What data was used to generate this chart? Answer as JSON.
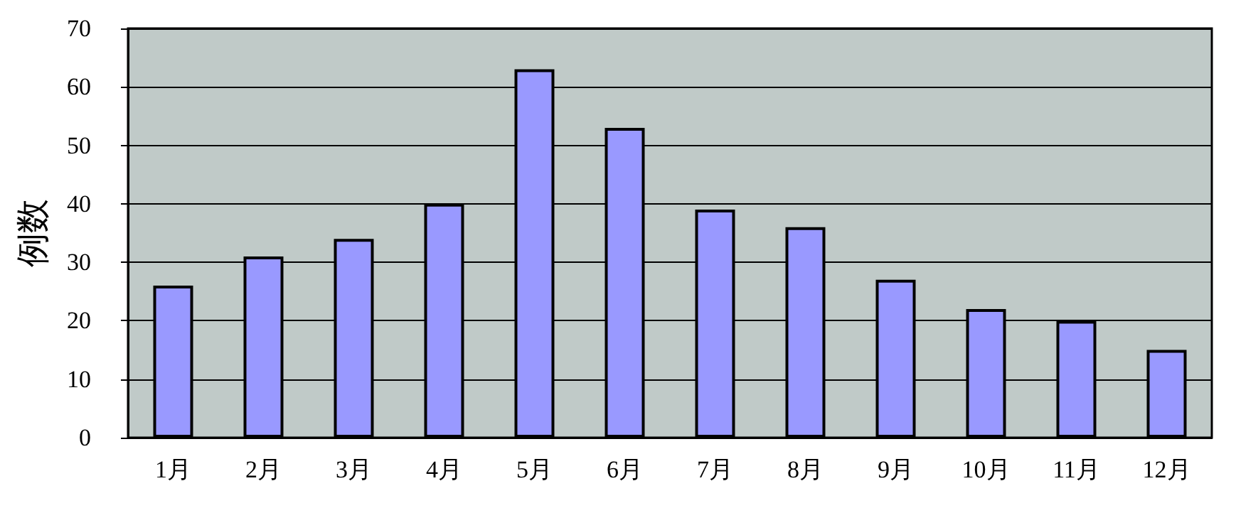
{
  "chart_data": {
    "type": "bar",
    "ylabel": "例数",
    "categories": [
      "1月",
      "2月",
      "3月",
      "4月",
      "5月",
      "6月",
      "7月",
      "8月",
      "9月",
      "10月",
      "11月",
      "12月"
    ],
    "values": [
      26,
      31,
      34,
      40,
      63,
      53,
      39,
      36,
      27,
      22,
      20,
      15
    ],
    "color": "#9999ff",
    "ylim": [
      0,
      70
    ],
    "yticks": [
      0,
      10,
      20,
      30,
      40,
      50,
      60,
      70
    ],
    "grid": "y"
  }
}
